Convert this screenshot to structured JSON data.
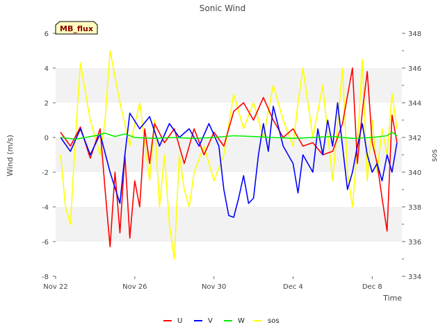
{
  "chart_data": {
    "type": "line",
    "title": "Sonic Wind",
    "site_badge": "MB_flux",
    "xlabel": "Time",
    "ylabel_left": "Wind (m/s)",
    "ylabel_right": "sos",
    "x_range": [
      "2023-11-22",
      "2023-12-09T12:00"
    ],
    "x_ticks": [
      {
        "date": "2023-11-22",
        "label": "Nov 22"
      },
      {
        "date": "2023-11-26",
        "label": "Nov 26"
      },
      {
        "date": "2023-11-30",
        "label": "Nov 30"
      },
      {
        "date": "2023-12-04",
        "label": "Dec 4"
      },
      {
        "date": "2023-12-08",
        "label": "Dec 8"
      }
    ],
    "y_left": {
      "range": [
        -8,
        6
      ],
      "ticks": [
        -8,
        -6,
        -4,
        -2,
        0,
        2,
        4,
        6
      ]
    },
    "y_right": {
      "range": [
        334,
        348
      ],
      "ticks": [
        334,
        336,
        338,
        340,
        342,
        344,
        346,
        348
      ]
    },
    "grid": "horizontal bands",
    "legend_position": "bottom",
    "series": [
      {
        "name": "U",
        "color": "#ff0000",
        "axis": "left",
        "points": [
          [
            "2023-11-22T06:00",
            0.3
          ],
          [
            "2023-11-22T18:00",
            -0.5
          ],
          [
            "2023-11-23T06:00",
            0.6
          ],
          [
            "2023-11-23T18:00",
            -1.2
          ],
          [
            "2023-11-24T06:00",
            0.5
          ],
          [
            "2023-11-24T12:00",
            -3.0
          ],
          [
            "2023-11-24T18:00",
            -6.3
          ],
          [
            "2023-11-25T00:00",
            -2.0
          ],
          [
            "2023-11-25T06:00",
            -5.5
          ],
          [
            "2023-11-25T12:00",
            -1.0
          ],
          [
            "2023-11-25T18:00",
            -5.8
          ],
          [
            "2023-11-26T00:00",
            -2.5
          ],
          [
            "2023-11-26T06:00",
            -4.0
          ],
          [
            "2023-11-26T12:00",
            0.5
          ],
          [
            "2023-11-26T18:00",
            -1.5
          ],
          [
            "2023-11-27T00:00",
            0.8
          ],
          [
            "2023-11-27T12:00",
            -0.3
          ],
          [
            "2023-11-28T00:00",
            0.5
          ],
          [
            "2023-11-28T12:00",
            -1.5
          ],
          [
            "2023-11-29T00:00",
            0.5
          ],
          [
            "2023-11-29T12:00",
            -1.0
          ],
          [
            "2023-11-30T00:00",
            0.3
          ],
          [
            "2023-11-30T12:00",
            -0.5
          ],
          [
            "2023-12-01T00:00",
            1.5
          ],
          [
            "2023-12-01T12:00",
            2.0
          ],
          [
            "2023-12-02T00:00",
            1.0
          ],
          [
            "2023-12-02T12:00",
            2.3
          ],
          [
            "2023-12-03T00:00",
            1.0
          ],
          [
            "2023-12-03T12:00",
            0.0
          ],
          [
            "2023-12-04T00:00",
            0.5
          ],
          [
            "2023-12-04T12:00",
            -0.5
          ],
          [
            "2023-12-05T00:00",
            -0.3
          ],
          [
            "2023-12-05T12:00",
            -1.0
          ],
          [
            "2023-12-06T00:00",
            -0.8
          ],
          [
            "2023-12-06T12:00",
            0.8
          ],
          [
            "2023-12-07T00:00",
            4.0
          ],
          [
            "2023-12-07T06:00",
            -1.5
          ],
          [
            "2023-12-07T12:00",
            1.5
          ],
          [
            "2023-12-07T18:00",
            3.8
          ],
          [
            "2023-12-08T00:00",
            -0.3
          ],
          [
            "2023-12-08T06:00",
            -1.5
          ],
          [
            "2023-12-08T12:00",
            -3.5
          ],
          [
            "2023-12-08T18:00",
            -5.4
          ],
          [
            "2023-12-09T00:00",
            1.3
          ],
          [
            "2023-12-09T06:00",
            -0.3
          ]
        ]
      },
      {
        "name": "V",
        "color": "#0000ff",
        "axis": "left",
        "points": [
          [
            "2023-11-22T06:00",
            0.0
          ],
          [
            "2023-11-22T18:00",
            -0.8
          ],
          [
            "2023-11-23T06:00",
            0.5
          ],
          [
            "2023-11-23T18:00",
            -1.0
          ],
          [
            "2023-11-24T06:00",
            0.2
          ],
          [
            "2023-11-24T18:00",
            -2.0
          ],
          [
            "2023-11-25T06:00",
            -3.8
          ],
          [
            "2023-11-25T12:00",
            -1.0
          ],
          [
            "2023-11-25T18:00",
            1.4
          ],
          [
            "2023-11-26T06:00",
            0.5
          ],
          [
            "2023-11-26T18:00",
            1.2
          ],
          [
            "2023-11-27T06:00",
            -0.5
          ],
          [
            "2023-11-27T18:00",
            0.8
          ],
          [
            "2023-11-28T06:00",
            0.0
          ],
          [
            "2023-11-28T18:00",
            0.5
          ],
          [
            "2023-11-29T06:00",
            -0.5
          ],
          [
            "2023-11-29T18:00",
            0.8
          ],
          [
            "2023-11-30T06:00",
            -0.5
          ],
          [
            "2023-11-30T12:00",
            -3.0
          ],
          [
            "2023-11-30T18:00",
            -4.5
          ],
          [
            "2023-12-01T00:00",
            -4.6
          ],
          [
            "2023-12-01T06:00",
            -3.5
          ],
          [
            "2023-12-01T12:00",
            -2.2
          ],
          [
            "2023-12-01T18:00",
            -3.8
          ],
          [
            "2023-12-02T00:00",
            -3.5
          ],
          [
            "2023-12-02T06:00",
            -1.0
          ],
          [
            "2023-12-02T12:00",
            0.8
          ],
          [
            "2023-12-02T18:00",
            -0.8
          ],
          [
            "2023-12-03T00:00",
            1.8
          ],
          [
            "2023-12-03T12:00",
            -0.5
          ],
          [
            "2023-12-04T00:00",
            -1.5
          ],
          [
            "2023-12-04T06:00",
            -3.2
          ],
          [
            "2023-12-04T12:00",
            -1.0
          ],
          [
            "2023-12-05T00:00",
            -2.0
          ],
          [
            "2023-12-05T06:00",
            0.5
          ],
          [
            "2023-12-05T12:00",
            -1.0
          ],
          [
            "2023-12-05T18:00",
            1.0
          ],
          [
            "2023-12-06T00:00",
            -0.5
          ],
          [
            "2023-12-06T06:00",
            2.0
          ],
          [
            "2023-12-06T12:00",
            -0.5
          ],
          [
            "2023-12-06T18:00",
            -3.0
          ],
          [
            "2023-12-07T00:00",
            -2.0
          ],
          [
            "2023-12-07T06:00",
            -0.5
          ],
          [
            "2023-12-07T12:00",
            0.8
          ],
          [
            "2023-12-07T18:00",
            -1.0
          ],
          [
            "2023-12-08T00:00",
            -2.0
          ],
          [
            "2023-12-08T06:00",
            -1.5
          ],
          [
            "2023-12-08T12:00",
            -2.5
          ],
          [
            "2023-12-08T18:00",
            -1.0
          ],
          [
            "2023-12-09T00:00",
            -2.0
          ],
          [
            "2023-12-09T06:00",
            -0.3
          ]
        ]
      },
      {
        "name": "W",
        "color": "#00ee00",
        "axis": "left",
        "points": [
          [
            "2023-11-22T06:00",
            0.0
          ],
          [
            "2023-11-23T00:00",
            -0.1
          ],
          [
            "2023-11-24T00:00",
            0.1
          ],
          [
            "2023-11-24T12:00",
            0.25
          ],
          [
            "2023-11-25T00:00",
            0.05
          ],
          [
            "2023-11-25T12:00",
            0.2
          ],
          [
            "2023-11-26T00:00",
            0.0
          ],
          [
            "2023-11-27T00:00",
            -0.05
          ],
          [
            "2023-11-28T00:00",
            0.0
          ],
          [
            "2023-11-29T00:00",
            -0.05
          ],
          [
            "2023-11-30T00:00",
            0.0
          ],
          [
            "2023-12-01T00:00",
            0.1
          ],
          [
            "2023-12-02T00:00",
            0.05
          ],
          [
            "2023-12-03T00:00",
            0.0
          ],
          [
            "2023-12-04T00:00",
            -0.05
          ],
          [
            "2023-12-05T00:00",
            0.0
          ],
          [
            "2023-12-06T00:00",
            0.05
          ],
          [
            "2023-12-07T00:00",
            -0.05
          ],
          [
            "2023-12-08T00:00",
            0.0
          ],
          [
            "2023-12-08T18:00",
            0.1
          ],
          [
            "2023-12-09T00:00",
            0.3
          ],
          [
            "2023-12-09T06:00",
            0.1
          ]
        ]
      },
      {
        "name": "sos",
        "color": "#ffff00",
        "axis": "right",
        "points": [
          [
            "2023-11-22T06:00",
            341.0
          ],
          [
            "2023-11-22T12:00",
            338.0
          ],
          [
            "2023-11-22T18:00",
            337.0
          ],
          [
            "2023-11-23T00:00",
            342.0
          ],
          [
            "2023-11-23T06:00",
            346.3
          ],
          [
            "2023-11-23T18:00",
            343.0
          ],
          [
            "2023-11-24T06:00",
            341.0
          ],
          [
            "2023-11-24T12:00",
            343.0
          ],
          [
            "2023-11-24T18:00",
            347.0
          ],
          [
            "2023-11-25T06:00",
            344.0
          ],
          [
            "2023-11-25T18:00",
            341.5
          ],
          [
            "2023-11-26T06:00",
            344.0
          ],
          [
            "2023-11-26T18:00",
            339.5
          ],
          [
            "2023-11-27T00:00",
            343.0
          ],
          [
            "2023-11-27T06:00",
            338.0
          ],
          [
            "2023-11-27T12:00",
            341.0
          ],
          [
            "2023-11-27T18:00",
            337.0
          ],
          [
            "2023-11-28T00:00",
            335.0
          ],
          [
            "2023-11-28T06:00",
            341.0
          ],
          [
            "2023-11-28T12:00",
            339.0
          ],
          [
            "2023-11-28T18:00",
            338.0
          ],
          [
            "2023-11-29T00:00",
            340.0
          ],
          [
            "2023-11-29T12:00",
            341.5
          ],
          [
            "2023-11-30T00:00",
            339.5
          ],
          [
            "2023-11-30T12:00",
            341.0
          ],
          [
            "2023-12-01T00:00",
            344.5
          ],
          [
            "2023-12-01T12:00",
            342.5
          ],
          [
            "2023-12-02T00:00",
            344.0
          ],
          [
            "2023-12-02T12:00",
            342.0
          ],
          [
            "2023-12-03T00:00",
            345.0
          ],
          [
            "2023-12-03T12:00",
            343.0
          ],
          [
            "2023-12-04T00:00",
            341.5
          ],
          [
            "2023-12-04T06:00",
            344.0
          ],
          [
            "2023-12-04T12:00",
            346.0
          ],
          [
            "2023-12-05T00:00",
            342.0
          ],
          [
            "2023-12-05T12:00",
            345.0
          ],
          [
            "2023-12-06T00:00",
            339.5
          ],
          [
            "2023-12-06T12:00",
            346.0
          ],
          [
            "2023-12-06T18:00",
            340.0
          ],
          [
            "2023-12-07T00:00",
            338.0
          ],
          [
            "2023-12-07T06:00",
            341.5
          ],
          [
            "2023-12-07T12:00",
            346.5
          ],
          [
            "2023-12-07T18:00",
            339.5
          ],
          [
            "2023-12-08T00:00",
            343.0
          ],
          [
            "2023-12-08T06:00",
            340.0
          ],
          [
            "2023-12-08T12:00",
            342.5
          ],
          [
            "2023-12-08T18:00",
            341.0
          ],
          [
            "2023-12-09T00:00",
            344.5
          ],
          [
            "2023-12-09T06:00",
            342.5
          ]
        ]
      }
    ]
  }
}
